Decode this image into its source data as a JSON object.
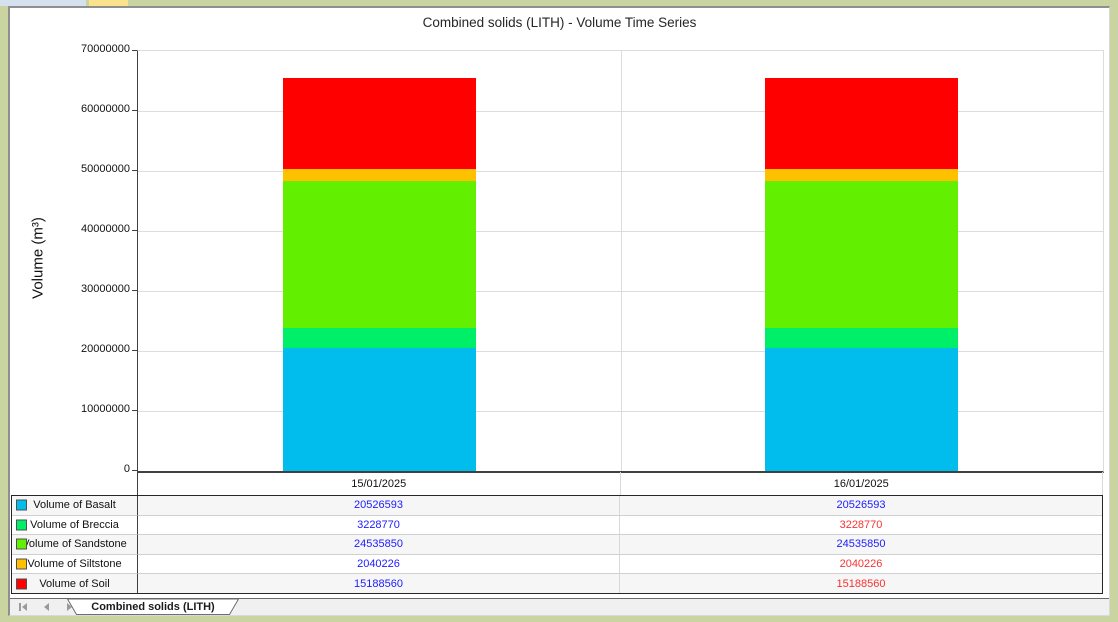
{
  "frame": {
    "border_color": "#c9d4a1",
    "accent_tab_colors": [
      "#d5e1ef",
      "#fbe28c"
    ]
  },
  "chart_data": {
    "type": "bar",
    "stacked": true,
    "title": "Combined solids (LITH) - Volume Time Series",
    "ylabel": "Volume (m³)",
    "ylim": [
      0,
      70000000
    ],
    "ytick_step": 10000000,
    "grid": true,
    "legend_position": "table-below",
    "categories": [
      "15/01/2025",
      "16/01/2025"
    ],
    "series": [
      {
        "name": "Volume of Basalt",
        "color": "#00bdee",
        "values": [
          20526593,
          20526593
        ],
        "value_text_colors": [
          "#1c1cff",
          "#1c1cff"
        ]
      },
      {
        "name": "Volume of Breccia",
        "color": "#00ef69",
        "values": [
          3228770,
          3228770
        ],
        "value_text_colors": [
          "#1c1cff",
          "#f73333"
        ]
      },
      {
        "name": "Volume of Sandstone",
        "color": "#62ef00",
        "values": [
          24535850,
          24535850
        ],
        "value_text_colors": [
          "#1c1cff",
          "#1c1cff"
        ]
      },
      {
        "name": "Volume of Siltstone",
        "color": "#ffc000",
        "values": [
          2040226,
          2040226
        ],
        "value_text_colors": [
          "#1c1cff",
          "#f73333"
        ]
      },
      {
        "name": "Volume of Soil",
        "color": "#fe0000",
        "values": [
          15188560,
          15188560
        ],
        "value_text_colors": [
          "#1c1cff",
          "#f73333"
        ]
      }
    ]
  },
  "sheet_bar": {
    "tab_label": "Combined solids (LITH)",
    "nav_buttons": [
      "first",
      "previous",
      "next",
      "last"
    ]
  }
}
